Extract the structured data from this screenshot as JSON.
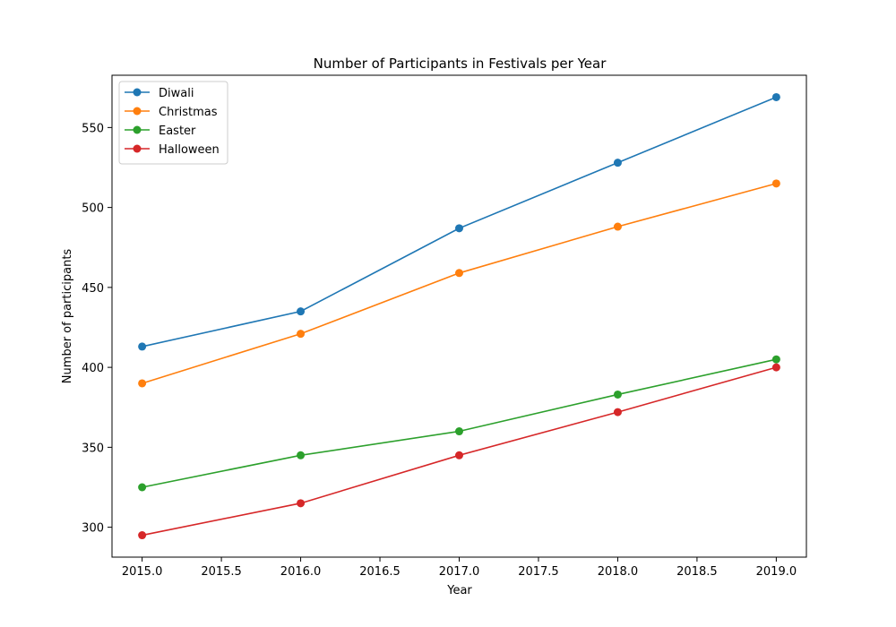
{
  "chart_data": {
    "type": "line",
    "title": "Number of Participants in Festivals per Year",
    "xlabel": "Year",
    "ylabel": "Number of participants",
    "x": [
      2015,
      2016,
      2017,
      2018,
      2019
    ],
    "xlim": [
      2014.81,
      2019.19
    ],
    "ylim": [
      281.3,
      582.7
    ],
    "xticks": [
      2015.0,
      2015.5,
      2016.0,
      2016.5,
      2017.0,
      2017.5,
      2018.0,
      2018.5,
      2019.0
    ],
    "xtick_labels": [
      "2015.0",
      "2015.5",
      "2016.0",
      "2016.5",
      "2017.0",
      "2017.5",
      "2018.0",
      "2018.5",
      "2019.0"
    ],
    "yticks": [
      300,
      350,
      400,
      450,
      500,
      550
    ],
    "ytick_labels": [
      "300",
      "350",
      "400",
      "450",
      "500",
      "550"
    ],
    "grid": false,
    "legend_position": "top-left",
    "series": [
      {
        "name": "Diwali",
        "color": "#1f77b4",
        "values": [
          413,
          435,
          487,
          528,
          569
        ]
      },
      {
        "name": "Christmas",
        "color": "#ff7f0e",
        "values": [
          390,
          421,
          459,
          488,
          515
        ]
      },
      {
        "name": "Easter",
        "color": "#2ca02c",
        "values": [
          325,
          345,
          360,
          383,
          405
        ]
      },
      {
        "name": "Halloween",
        "color": "#d62728",
        "values": [
          295,
          315,
          345,
          372,
          400
        ]
      }
    ]
  }
}
